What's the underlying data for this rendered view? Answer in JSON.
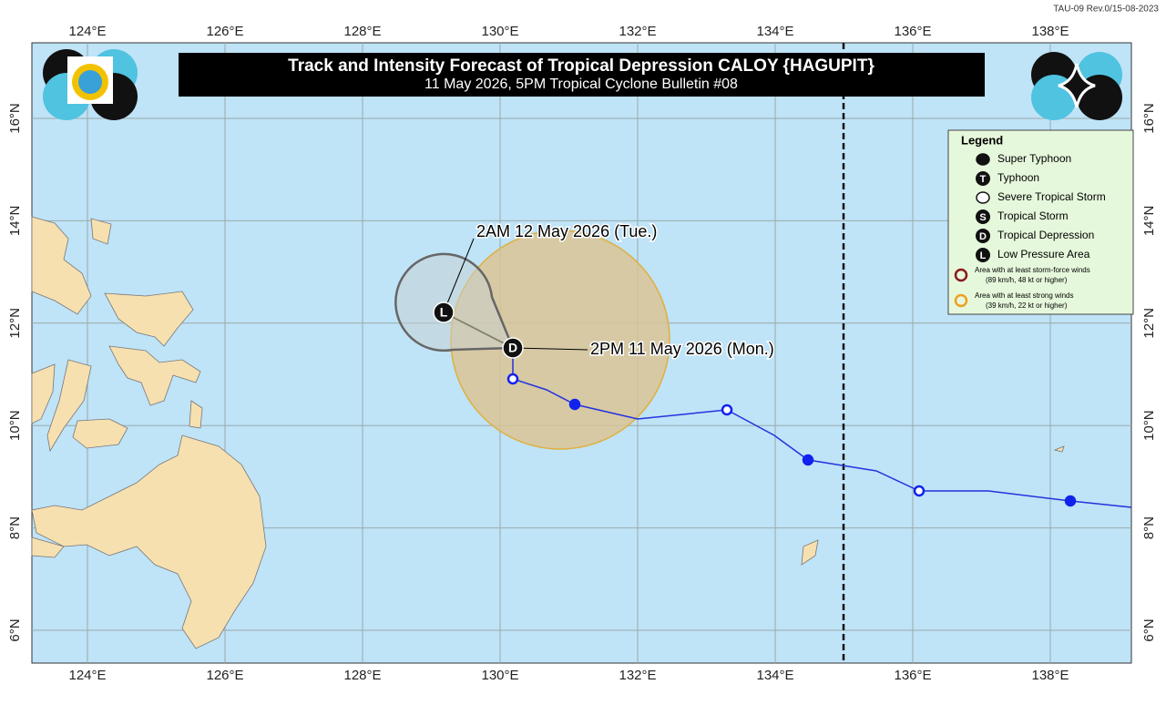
{
  "header": {
    "revision": "TAU-09 Rev.0/15-08-2023",
    "title": "Track and Intensity Forecast of Tropical Depression CALOY {HAGUPIT}",
    "subtitle": "11 May 2026, 5PM Tropical Cyclone Bulletin #08"
  },
  "map": {
    "lon_labels": [
      "124°E",
      "126°E",
      "128°E",
      "130°E",
      "132°E",
      "134°E",
      "136°E",
      "138°E"
    ],
    "lat_labels": [
      "16°N",
      "14°N",
      "12°N",
      "10°N",
      "8°N",
      "6°N"
    ],
    "annotations": [
      "2AM 12 May 2026 (Tue.)",
      "2PM 11 May 2026 (Mon.)"
    ],
    "markers": [
      "L",
      "D"
    ]
  },
  "legend": {
    "title": "Legend",
    "items": [
      {
        "label": "Super Typhoon"
      },
      {
        "symbol": "T",
        "label": "Typhoon"
      },
      {
        "label": "Severe Tropical Storm"
      },
      {
        "symbol": "S",
        "label": "Tropical Storm"
      },
      {
        "symbol": "D",
        "label": "Tropical Depression"
      },
      {
        "symbol": "L",
        "label": "Low Pressure Area"
      }
    ],
    "areas": [
      {
        "label": "Area with at least storm-force winds",
        "detail": "(89 km/h, 48 kt or higher)"
      },
      {
        "label": "Area with at least strong winds",
        "detail": "(39 km/h, 22 kt or higher)"
      }
    ]
  }
}
